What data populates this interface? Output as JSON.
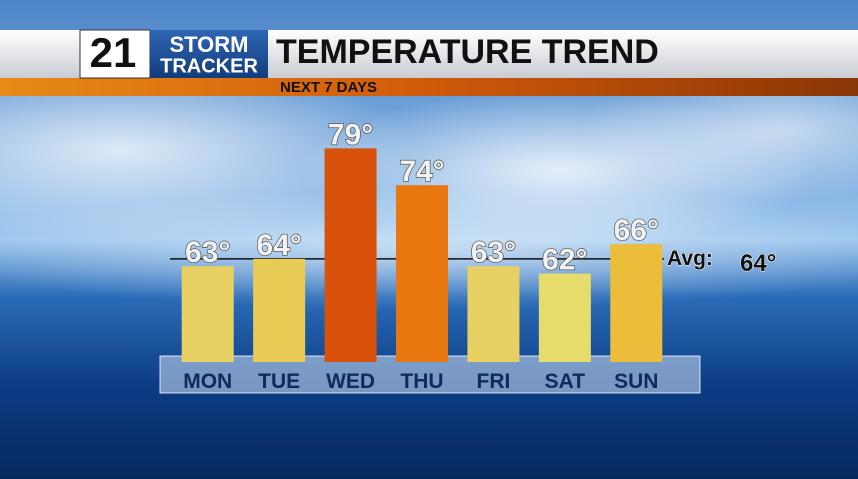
{
  "header": {
    "station": "21",
    "brand_top": "STORM",
    "brand_bottom": "TRACKER"
  },
  "chart_data": {
    "type": "bar",
    "title": "TEMPERATURE TREND",
    "subtitle": "NEXT 7 DAYS",
    "categories": [
      "MON",
      "TUE",
      "WED",
      "THU",
      "FRI",
      "SAT",
      "SUN"
    ],
    "values": [
      63,
      64,
      79,
      74,
      63,
      62,
      66
    ],
    "value_labels": [
      "63°",
      "64°",
      "79°",
      "74°",
      "63°",
      "62°",
      "66°"
    ],
    "colors": [
      "#e8d062",
      "#e9cc55",
      "#d8520b",
      "#e8770f",
      "#e8d062",
      "#e6dc6c",
      "#ecbc3b"
    ],
    "ylim": [
      50,
      80
    ],
    "average": {
      "label": "Avg:",
      "value": 64,
      "value_label": "64°"
    }
  }
}
